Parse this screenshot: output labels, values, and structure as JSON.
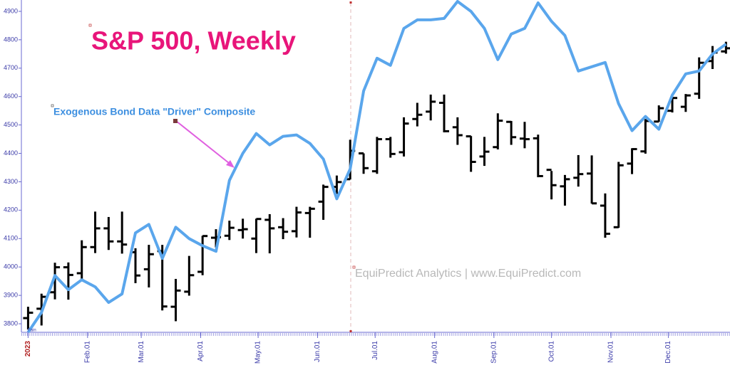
{
  "chart_data": {
    "type": "ohlc",
    "title": "S&P 500, Weekly",
    "annotation": "Exogenous Bond Data \"Driver\" Composite",
    "watermark": "EquiPredict Analytics | www.EquiPredict.com",
    "corner_label": "Fain",
    "xlim": [
      -0.5,
      52.3
    ],
    "ylim": [
      3770,
      4940
    ],
    "yticks": [
      3800,
      3900,
      4000,
      4100,
      4200,
      4300,
      4400,
      4500,
      4600,
      4700,
      4800,
      4900
    ],
    "xticks": [
      {
        "value": 0,
        "label": "2023"
      },
      {
        "value": 4.43,
        "label": "Feb.01"
      },
      {
        "value": 8.43,
        "label": "Mar.01"
      },
      {
        "value": 12.86,
        "label": "Apr.01"
      },
      {
        "value": 17.14,
        "label": "May.01"
      },
      {
        "value": 21.57,
        "label": "Jun.01"
      },
      {
        "value": 25.86,
        "label": "Jul.01"
      },
      {
        "value": 30.29,
        "label": "Aug.01"
      },
      {
        "value": 34.71,
        "label": "Sep.01"
      },
      {
        "value": 39,
        "label": "Oct.01"
      },
      {
        "value": 43.43,
        "label": "Nov.01"
      },
      {
        "value": 47.71,
        "label": "Dec.01"
      }
    ],
    "ohlc": {
      "color": "#000000",
      "open": [
        3820,
        3853,
        3911,
        3999,
        3978,
        4070,
        4136,
        4090,
        4052,
        3992,
        4056,
        3860,
        3913,
        3983,
        4103,
        4110,
        4130,
        4100,
        4166,
        4140,
        4126,
        4190,
        4230,
        4282,
        4309,
        4400,
        4337,
        4450,
        4404,
        4521,
        4547,
        4578,
        4492,
        4460,
        4389,
        4422,
        4511,
        4452,
        4453,
        4342,
        4284,
        4314,
        4329,
        4216,
        4140,
        4364,
        4407,
        4512,
        4550,
        4564,
        4610,
        4725,
        4759
      ],
      "high": [
        3860,
        3906,
        4015,
        4016,
        4094,
        4195,
        4176,
        4195,
        4066,
        4078,
        4078,
        3958,
        4039,
        4110,
        4133,
        4163,
        4170,
        4170,
        4186,
        4172,
        4212,
        4212,
        4290,
        4322,
        4448,
        4400,
        4458,
        4458,
        4527,
        4578,
        4607,
        4607,
        4527,
        4461,
        4458,
        4541,
        4514,
        4511,
        4466,
        4338,
        4324,
        4394,
        4393,
        4259,
        4370,
        4418,
        4521,
        4569,
        4596,
        4609,
        4738,
        4778,
        4793
      ],
      "low": [
        3780,
        3794,
        3886,
        3885,
        3949,
        4049,
        4060,
        4047,
        3943,
        3928,
        3847,
        3809,
        3899,
        3971,
        4069,
        4095,
        4100,
        4049,
        4048,
        4098,
        4104,
        4103,
        4166,
        4257,
        4308,
        4328,
        4328,
        4385,
        4389,
        4495,
        4516,
        4474,
        4430,
        4335,
        4356,
        4414,
        4430,
        4418,
        4316,
        4238,
        4216,
        4283,
        4223,
        4103,
        4138,
        4327,
        4399,
        4511,
        4544,
        4546,
        4592,
        4697,
        4751
      ],
      "close": [
        3839,
        3895,
        3999,
        3972,
        4070,
        4136,
        4090,
        4079,
        3970,
        4045,
        3861,
        3917,
        3971,
        4109,
        4105,
        4138,
        4133,
        4169,
        4136,
        4124,
        4192,
        4205,
        4282,
        4299,
        4409,
        4348,
        4450,
        4398,
        4505,
        4536,
        4582,
        4478,
        4464,
        4370,
        4406,
        4515,
        4457,
        4450,
        4320,
        4288,
        4309,
        4327,
        4224,
        4117,
        4358,
        4415,
        4514,
        4559,
        4595,
        4604,
        4719,
        4755,
        4770
      ]
    },
    "line": {
      "color": "#5aa6ec",
      "values": [
        3770,
        3840,
        3970,
        3920,
        3955,
        3930,
        3875,
        3905,
        4120,
        4150,
        4030,
        4140,
        4100,
        4075,
        4055,
        4305,
        4400,
        4470,
        4430,
        4460,
        4465,
        4435,
        4380,
        4240,
        4345,
        4620,
        4735,
        4710,
        4840,
        4870,
        4870,
        4875,
        4935,
        4900,
        4840,
        4730,
        4820,
        4840,
        4930,
        4865,
        4815,
        4690,
        4705,
        4720,
        4575,
        4480,
        4530,
        4485,
        4605,
        4680,
        4690,
        4750,
        4785
      ]
    }
  }
}
